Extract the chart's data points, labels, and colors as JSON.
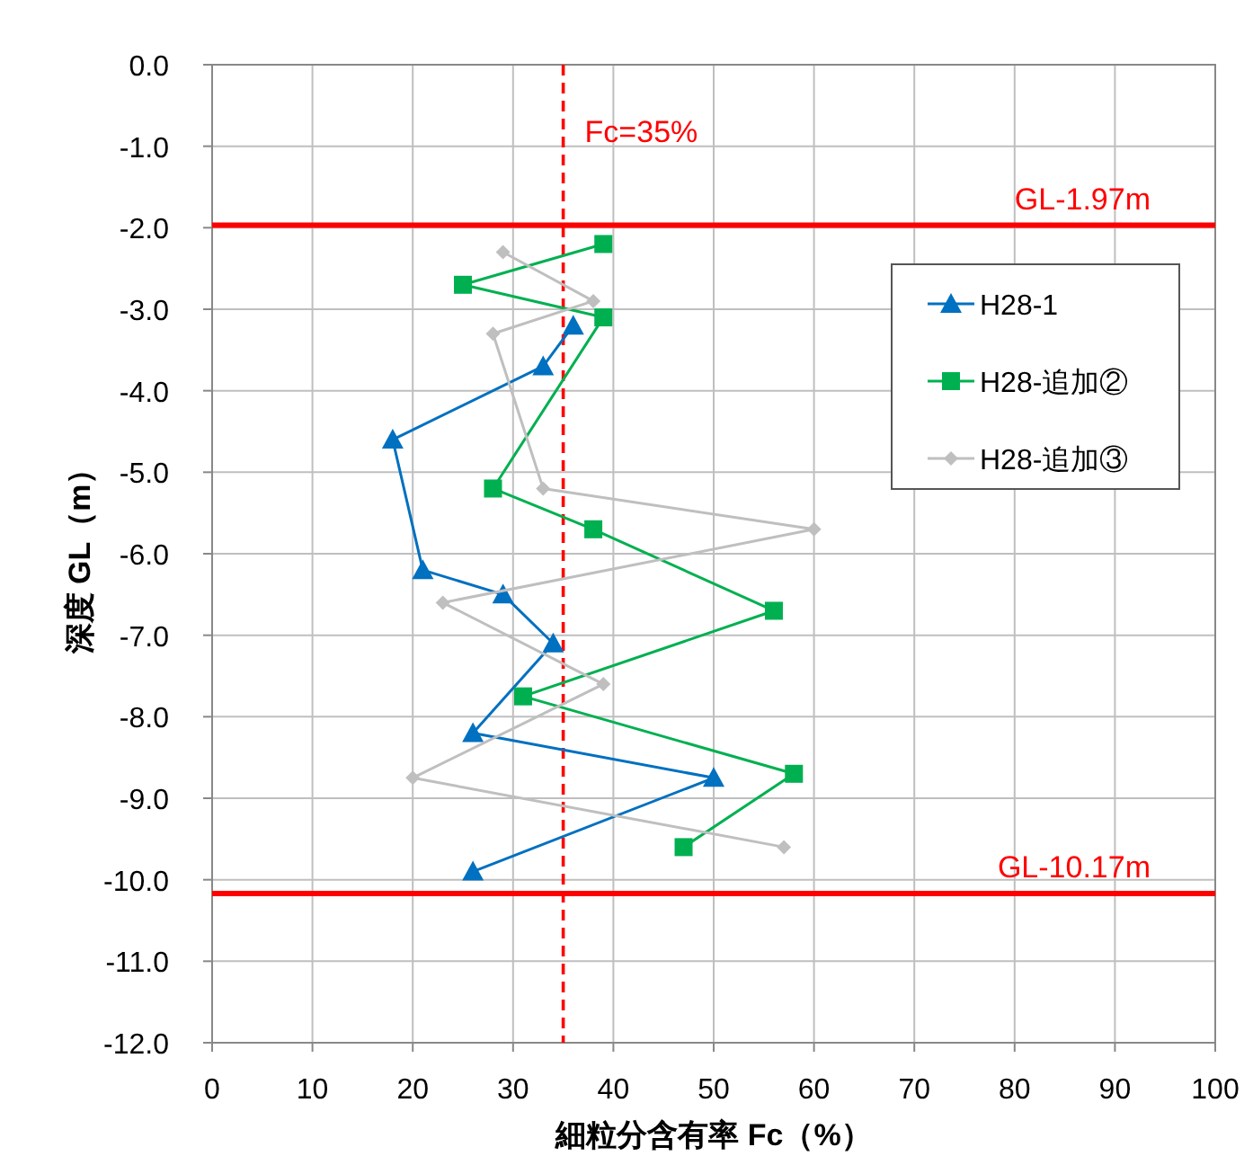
{
  "chart_data": {
    "type": "line",
    "xlabel": "細粒分含有率 Fc（%）",
    "ylabel": "深度 GL（m）",
    "xlim": [
      0,
      100
    ],
    "xticks": [
      0,
      10,
      20,
      30,
      40,
      50,
      60,
      70,
      80,
      90,
      100
    ],
    "ylim": [
      -12,
      0
    ],
    "yticks": [
      {
        "value": 0,
        "label": "0.0"
      },
      {
        "value": -1,
        "label": "-1.0"
      },
      {
        "value": -2,
        "label": "-2.0"
      },
      {
        "value": -3,
        "label": "-3.0"
      },
      {
        "value": -4,
        "label": "-4.0"
      },
      {
        "value": -5,
        "label": "-5.0"
      },
      {
        "value": -6,
        "label": "-6.0"
      },
      {
        "value": -7,
        "label": "-7.0"
      },
      {
        "value": -8,
        "label": "-8.0"
      },
      {
        "value": -9,
        "label": "-9.0"
      },
      {
        "value": -10,
        "label": "-10.0"
      },
      {
        "value": -11,
        "label": "-11.0"
      },
      {
        "value": -12,
        "label": "-12.0"
      }
    ],
    "grid": true,
    "legend": "top right",
    "series": [
      {
        "name": "H28-1",
        "color": "#0070c0",
        "marker": "triangle",
        "x": [
          36,
          33,
          18,
          21,
          29,
          34,
          26,
          50,
          26
        ],
        "values": [
          -3.2,
          -3.7,
          -4.6,
          -6.2,
          -6.5,
          -7.1,
          -8.2,
          -8.75,
          -9.9
        ]
      },
      {
        "name": "H28-追加②",
        "color": "#00b050",
        "marker": "square",
        "x": [
          39,
          25,
          39,
          28,
          38,
          56,
          31,
          58,
          47
        ],
        "values": [
          -2.2,
          -2.7,
          -3.1,
          -5.2,
          -5.7,
          -6.7,
          -7.75,
          -8.7,
          -9.6
        ]
      },
      {
        "name": "H28-追加③",
        "color": "#bfbfbf",
        "marker": "diamond",
        "x": [
          29,
          38,
          28,
          33,
          60,
          23,
          39,
          20,
          57
        ],
        "values": [
          -2.3,
          -2.9,
          -3.3,
          -5.2,
          -5.7,
          -6.6,
          -7.6,
          -8.75,
          -9.6
        ]
      }
    ],
    "ref_lines": [
      {
        "axis": "x",
        "value": 35,
        "label": "Fc=35%",
        "color": "#ff0000",
        "line_style": "dashed"
      },
      {
        "axis": "y",
        "value": -1.97,
        "label": "GL-1.97m",
        "color": "#ff0000",
        "line_style": "solid"
      },
      {
        "axis": "y",
        "value": -10.17,
        "label": "GL-10.17m",
        "color": "#ff0000",
        "line_style": "solid"
      }
    ]
  }
}
